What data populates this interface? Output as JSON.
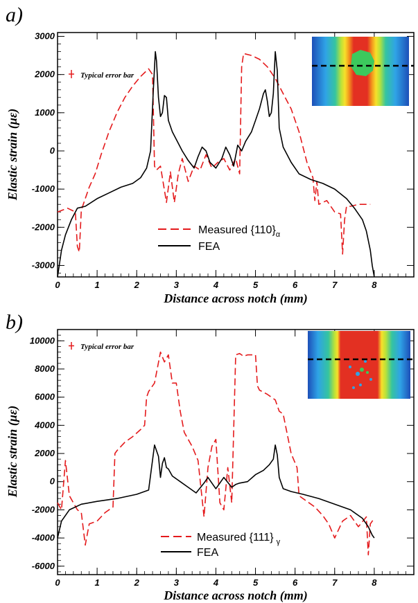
{
  "chart_data": [
    {
      "panel_label": "a)",
      "type": "line",
      "xlabel": "Distance across notch (mm)",
      "ylabel": "Elastic strain (με)",
      "xlim": [
        0,
        9
      ],
      "ylim": [
        -3300,
        3100
      ],
      "xticks": [
        0,
        1,
        2,
        3,
        4,
        5,
        6,
        7,
        8
      ],
      "yticks": [
        -3000,
        -2000,
        -1000,
        0,
        1000,
        2000,
        3000
      ],
      "error_bar_label": "Typical error bar",
      "legend": {
        "position": "bottom-center",
        "entries": [
          {
            "label": "Measured {110}",
            "subscript": "α",
            "color": "#e41a1c",
            "style": "dashed"
          },
          {
            "label": "FEA",
            "subscript": "",
            "color": "#000000",
            "style": "solid"
          }
        ]
      },
      "inset": {
        "position": "top-right",
        "colors": [
          "#1d4fb8",
          "#2fa3e6",
          "#35c4a0",
          "#b9e23a",
          "#f7e02a",
          "#f39a1d",
          "#e33022",
          "#3cc95d"
        ]
      },
      "series": [
        {
          "name": "Measured {110}α",
          "color": "#e41a1c",
          "style": "dashed",
          "x": [
            0.0,
            0.25,
            0.45,
            0.5,
            0.55,
            0.6,
            0.7,
            0.8,
            0.95,
            1.1,
            1.3,
            1.5,
            1.7,
            1.9,
            2.1,
            2.3,
            2.4,
            2.45,
            2.5,
            2.6,
            2.75,
            2.85,
            2.95,
            3.05,
            3.15,
            3.3,
            3.45,
            3.6,
            3.75,
            3.9,
            4.05,
            4.2,
            4.35,
            4.5,
            4.6,
            4.65,
            4.7,
            4.9,
            5.1,
            5.3,
            5.5,
            5.7,
            5.9,
            6.1,
            6.3,
            6.45,
            6.5,
            6.55,
            6.6,
            6.8,
            7.0,
            7.15,
            7.2,
            7.25,
            7.3,
            7.4,
            7.6,
            7.8,
            7.9
          ],
          "y": [
            -1600,
            -1500,
            -1600,
            -2500,
            -2650,
            -1550,
            -1250,
            -950,
            -600,
            -100,
            500,
            1000,
            1400,
            1700,
            1950,
            2150,
            2000,
            -400,
            -500,
            -400,
            -1350,
            -550,
            -1350,
            -600,
            -200,
            -800,
            -400,
            -500,
            -100,
            -450,
            -300,
            -200,
            -500,
            -200,
            -600,
            2200,
            2550,
            2500,
            2400,
            2200,
            1900,
            1500,
            1100,
            500,
            -300,
            -700,
            -1300,
            -800,
            -1400,
            -1300,
            -1600,
            -1650,
            -2700,
            -1800,
            -1450,
            -1450,
            -1400,
            -1400,
            -1400
          ]
        },
        {
          "name": "FEA",
          "color": "#000000",
          "style": "solid",
          "x": [
            0.0,
            0.1,
            0.2,
            0.35,
            0.5,
            0.7,
            1.0,
            1.3,
            1.6,
            1.9,
            2.1,
            2.25,
            2.35,
            2.42,
            2.47,
            2.5,
            2.55,
            2.6,
            2.65,
            2.7,
            2.75,
            2.8,
            2.9,
            3.0,
            3.15,
            3.3,
            3.45,
            3.55,
            3.65,
            3.75,
            3.85,
            4.0,
            4.15,
            4.25,
            4.35,
            4.45,
            4.55,
            4.65,
            4.75,
            4.9,
            5.0,
            5.1,
            5.2,
            5.25,
            5.3,
            5.35,
            5.4,
            5.45,
            5.5,
            5.55,
            5.6,
            5.7,
            5.9,
            6.1,
            6.4,
            6.7,
            7.0,
            7.3,
            7.5,
            7.7,
            7.8,
            7.9,
            7.95,
            8.0
          ],
          "y": [
            -3300,
            -2600,
            -2200,
            -1800,
            -1500,
            -1450,
            -1250,
            -1100,
            -950,
            -850,
            -700,
            -450,
            0,
            1600,
            2600,
            2350,
            1400,
            900,
            1000,
            1450,
            1400,
            800,
            500,
            300,
            0,
            -250,
            -450,
            -150,
            100,
            0,
            -300,
            -450,
            -200,
            100,
            -100,
            -400,
            150,
            0,
            250,
            500,
            800,
            1100,
            1500,
            1600,
            1300,
            900,
            1000,
            1500,
            2600,
            2100,
            600,
            100,
            -300,
            -600,
            -750,
            -850,
            -1000,
            -1250,
            -1500,
            -1800,
            -2100,
            -2600,
            -3000,
            -3300
          ]
        }
      ]
    },
    {
      "panel_label": "b)",
      "type": "line",
      "xlabel": "Distance across notch (mm)",
      "ylabel": "Elastic strain (με)",
      "xlim": [
        0,
        9
      ],
      "ylim": [
        -6600,
        10800
      ],
      "xticks": [
        0,
        1,
        2,
        3,
        4,
        5,
        6,
        7,
        8
      ],
      "yticks": [
        -6000,
        -4000,
        -2000,
        0,
        2000,
        4000,
        6000,
        8000,
        10000
      ],
      "error_bar_label": "Typical error bar",
      "legend": {
        "position": "bottom-center",
        "entries": [
          {
            "label": "Measured {111}",
            "subscript": "γ",
            "color": "#e41a1c",
            "style": "dashed"
          },
          {
            "label": "FEA",
            "subscript": "",
            "color": "#000000",
            "style": "solid"
          }
        ]
      },
      "inset": {
        "position": "top-right",
        "colors": [
          "#1d4fb8",
          "#2fa3e6",
          "#35c4a0",
          "#b9e23a",
          "#f7e02a",
          "#f39a1d",
          "#e33022",
          "#3cc95d"
        ]
      },
      "series": [
        {
          "name": "Measured {111}γ",
          "color": "#e41a1c",
          "style": "dashed",
          "x": [
            0.0,
            0.1,
            0.2,
            0.3,
            0.4,
            0.5,
            0.6,
            0.7,
            0.8,
            1.0,
            1.2,
            1.4,
            1.45,
            1.5,
            1.7,
            1.9,
            2.1,
            2.2,
            2.25,
            2.3,
            2.45,
            2.6,
            2.7,
            2.8,
            2.9,
            3.0,
            3.1,
            3.2,
            3.4,
            3.55,
            3.7,
            3.8,
            3.9,
            4.0,
            4.1,
            4.2,
            4.3,
            4.4,
            4.5,
            4.6,
            4.7,
            4.8,
            5.0,
            5.05,
            5.1,
            5.3,
            5.5,
            5.6,
            5.7,
            5.9,
            6.05,
            6.1,
            6.3,
            6.5,
            6.7,
            6.85,
            7.0,
            7.2,
            7.4,
            7.6,
            7.8,
            7.85,
            7.9,
            8.0
          ],
          "y": [
            -1500,
            -2000,
            1500,
            -1000,
            -1500,
            -2000,
            -2200,
            -4500,
            -3000,
            -2800,
            -2200,
            -1800,
            2000,
            2200,
            2800,
            3200,
            3700,
            4000,
            6000,
            6400,
            7000,
            9200,
            8500,
            9000,
            7000,
            7000,
            5000,
            3500,
            2500,
            1500,
            -2500,
            1000,
            2500,
            3000,
            -1500,
            -2000,
            1000,
            -1500,
            9000,
            9100,
            8900,
            9000,
            9000,
            6800,
            6500,
            6200,
            5800,
            5000,
            4800,
            2000,
            1000,
            -1000,
            -1400,
            -1800,
            -2400,
            -3000,
            -4000,
            -2800,
            -2400,
            -3200,
            -2500,
            -5200,
            -3000,
            -2600
          ]
        },
        {
          "name": "FEA",
          "color": "#000000",
          "style": "solid",
          "x": [
            0.0,
            0.1,
            0.3,
            0.6,
            1.0,
            1.5,
            2.0,
            2.3,
            2.45,
            2.55,
            2.6,
            2.65,
            2.7,
            2.75,
            2.8,
            2.9,
            3.1,
            3.3,
            3.5,
            3.7,
            3.8,
            3.9,
            4.0,
            4.2,
            4.4,
            4.5,
            4.6,
            4.8,
            5.0,
            5.2,
            5.35,
            5.45,
            5.5,
            5.55,
            5.6,
            5.7,
            5.9,
            6.2,
            6.6,
            7.0,
            7.4,
            7.7,
            7.85,
            7.95,
            8.0
          ],
          "y": [
            -4000,
            -2800,
            -2000,
            -1600,
            -1400,
            -1200,
            -900,
            -600,
            2600,
            1800,
            300,
            1300,
            1700,
            1000,
            900,
            400,
            0,
            -400,
            -800,
            -100,
            300,
            -100,
            -500,
            300,
            -400,
            -200,
            -100,
            0,
            500,
            800,
            1200,
            1600,
            2600,
            1900,
            300,
            -500,
            -700,
            -900,
            -1200,
            -1600,
            -2000,
            -2600,
            -3200,
            -3800,
            -4000
          ]
        }
      ]
    }
  ]
}
